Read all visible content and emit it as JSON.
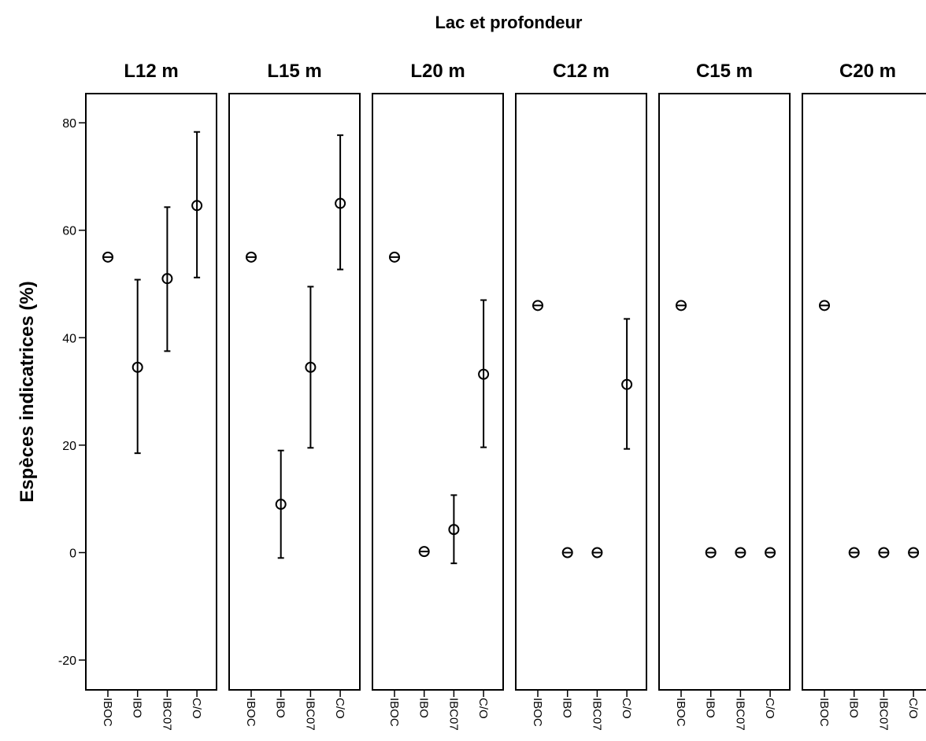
{
  "chart_data": {
    "type": "scatter",
    "subtype": "error-bar dot plot, small multiples",
    "title": "Lac et profondeur",
    "ylabel": "Espèces indicatrices (%)",
    "ylim": [
      -25,
      86
    ],
    "yticks": [
      -20,
      0,
      20,
      40,
      60,
      80
    ],
    "categories": [
      "IBOC",
      "IBO",
      "IBC07",
      "C/O"
    ],
    "grid": false,
    "colors": {
      "stroke": "#000000",
      "background": "#ffffff"
    },
    "marker": "open-circle",
    "panels": [
      {
        "name": "L12 m",
        "points": [
          {
            "category": "IBOC",
            "y": 55,
            "lo": 55,
            "hi": 55
          },
          {
            "category": "IBO",
            "y": 34.5,
            "lo": 18.5,
            "hi": 50.8
          },
          {
            "category": "IBC07",
            "y": 51,
            "lo": 37.5,
            "hi": 64.3
          },
          {
            "category": "C/O",
            "y": 64.6,
            "lo": 51.2,
            "hi": 78.3
          }
        ]
      },
      {
        "name": "L15 m",
        "points": [
          {
            "category": "IBOC",
            "y": 55,
            "lo": 55,
            "hi": 55
          },
          {
            "category": "IBO",
            "y": 9,
            "lo": -1,
            "hi": 19
          },
          {
            "category": "IBC07",
            "y": 34.5,
            "lo": 19.5,
            "hi": 49.5
          },
          {
            "category": "C/O",
            "y": 65,
            "lo": 52.7,
            "hi": 77.7
          }
        ]
      },
      {
        "name": "L20 m",
        "points": [
          {
            "category": "IBOC",
            "y": 55,
            "lo": 55,
            "hi": 55
          },
          {
            "category": "IBO",
            "y": 0.2,
            "lo": 0.2,
            "hi": 0.2
          },
          {
            "category": "IBC07",
            "y": 4.3,
            "lo": -2,
            "hi": 10.7
          },
          {
            "category": "C/O",
            "y": 33.2,
            "lo": 19.6,
            "hi": 47
          }
        ]
      },
      {
        "name": "C12 m",
        "points": [
          {
            "category": "IBOC",
            "y": 46,
            "lo": 46,
            "hi": 46
          },
          {
            "category": "IBO",
            "y": 0,
            "lo": 0,
            "hi": 0
          },
          {
            "category": "IBC07",
            "y": 0,
            "lo": 0,
            "hi": 0
          },
          {
            "category": "C/O",
            "y": 31.3,
            "lo": 19.3,
            "hi": 43.5
          }
        ]
      },
      {
        "name": "C15 m",
        "points": [
          {
            "category": "IBOC",
            "y": 46,
            "lo": 46,
            "hi": 46
          },
          {
            "category": "IBO",
            "y": 0,
            "lo": 0,
            "hi": 0
          },
          {
            "category": "IBC07",
            "y": 0,
            "lo": 0,
            "hi": 0
          },
          {
            "category": "C/O",
            "y": 0,
            "lo": 0,
            "hi": 0
          }
        ]
      },
      {
        "name": "C20 m",
        "points": [
          {
            "category": "IBOC",
            "y": 46,
            "lo": 46,
            "hi": 46
          },
          {
            "category": "IBO",
            "y": 0,
            "lo": 0,
            "hi": 0
          },
          {
            "category": "IBC07",
            "y": 0,
            "lo": 0,
            "hi": 0
          },
          {
            "category": "C/O",
            "y": 0,
            "lo": 0,
            "hi": 0
          }
        ]
      }
    ]
  }
}
